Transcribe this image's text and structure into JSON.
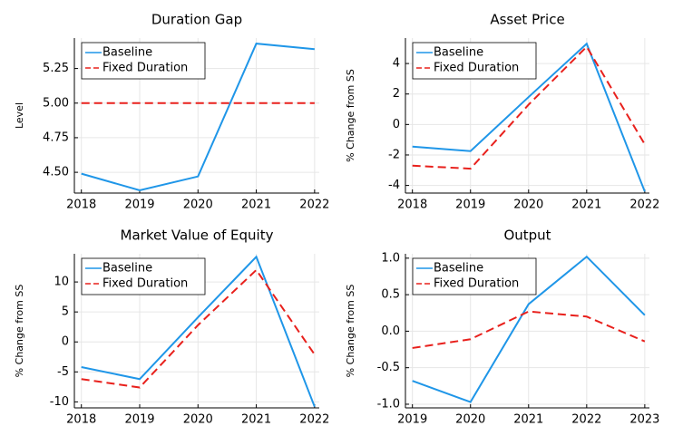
{
  "chart_data": [
    {
      "type": "line",
      "title": "Duration Gap",
      "y_label": "Level",
      "x": [
        2018,
        2019,
        2020,
        2021,
        2022
      ],
      "xlim": [
        2017.88,
        2022.08
      ],
      "xticks": [
        2018,
        2019,
        2020,
        2021,
        2022
      ],
      "ylim": [
        4.35,
        5.47
      ],
      "yticks": [
        {
          "value": 4.5,
          "label": "4.50"
        },
        4.75,
        {
          "value": 5,
          "label": "5.00"
        },
        5.25
      ],
      "grid": true,
      "legend": "top-left",
      "series": [
        {
          "name": "Baseline",
          "color": "#1f96e8",
          "style": "solid",
          "values": [
            4.49,
            4.37,
            4.47,
            5.43,
            5.39
          ]
        },
        {
          "name": "Fixed Duration",
          "color": "#e8201c",
          "style": "dashed",
          "values": [
            5.0,
            5.0,
            5.0,
            5.0,
            5.0
          ]
        }
      ]
    },
    {
      "type": "line",
      "title": "Asset Price",
      "y_label": "% Change from SS",
      "x": [
        2018,
        2019,
        2020,
        2021,
        2022
      ],
      "xlim": [
        2017.88,
        2022.08
      ],
      "xticks": [
        2018,
        2019,
        2020,
        2021,
        2022
      ],
      "ylim": [
        -4.5,
        5.67
      ],
      "yticks": [
        -4,
        -2,
        0,
        2,
        4
      ],
      "grid": true,
      "legend": "top-left",
      "series": [
        {
          "name": "Baseline",
          "color": "#1f96e8",
          "style": "solid",
          "values": [
            -1.45,
            -1.75,
            1.8,
            5.3,
            -4.4
          ]
        },
        {
          "name": "Fixed Duration",
          "color": "#e8201c",
          "style": "dashed",
          "values": [
            -2.7,
            -2.9,
            1.3,
            5.1,
            -1.3
          ]
        }
      ]
    },
    {
      "type": "line",
      "title": "Market Value of Equity",
      "y_label": "% Change from SS",
      "x": [
        2018,
        2019,
        2020,
        2021,
        2022
      ],
      "xlim": [
        2017.88,
        2022.08
      ],
      "xticks": [
        2018,
        2019,
        2020,
        2021,
        2022
      ],
      "ylim": [
        -11,
        14.7
      ],
      "yticks": [
        -10,
        -5,
        0,
        5,
        10
      ],
      "grid": true,
      "legend": "top-left",
      "series": [
        {
          "name": "Baseline",
          "color": "#1f96e8",
          "style": "solid",
          "values": [
            -4.2,
            -6.2,
            4.1,
            14.2,
            -10.8
          ]
        },
        {
          "name": "Fixed Duration",
          "color": "#e8201c",
          "style": "dashed",
          "values": [
            -6.2,
            -7.6,
            2.8,
            12.0,
            -2.1
          ]
        }
      ]
    },
    {
      "type": "line",
      "title": "Output",
      "y_label": "% Change from SS",
      "x": [
        2019,
        2020,
        2021,
        2022,
        2023
      ],
      "xlim": [
        2018.88,
        2023.08
      ],
      "xticks": [
        2019,
        2020,
        2021,
        2022,
        2023
      ],
      "ylim": [
        -1.05,
        1.06
      ],
      "yticks": [
        {
          "value": -1,
          "label": "-1.0"
        },
        -0.5,
        {
          "value": 0,
          "label": "0.0"
        },
        0.5,
        {
          "value": 1,
          "label": "1.0"
        }
      ],
      "grid": true,
      "legend": "top-left",
      "series": [
        {
          "name": "Baseline",
          "color": "#1f96e8",
          "style": "solid",
          "values": [
            -0.68,
            -0.97,
            0.37,
            1.02,
            0.22
          ]
        },
        {
          "name": "Fixed Duration",
          "color": "#e8201c",
          "style": "dashed",
          "values": [
            -0.23,
            -0.11,
            0.27,
            0.2,
            -0.14
          ]
        }
      ]
    }
  ]
}
